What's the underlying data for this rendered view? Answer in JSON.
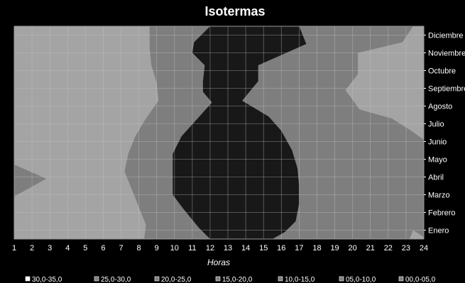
{
  "chart_data": {
    "type": "contour",
    "title": "Isotermas",
    "xlabel": "Horas",
    "ylabel": "",
    "x_ticks": [
      "1",
      "2",
      "3",
      "4",
      "5",
      "6",
      "7",
      "8",
      "9",
      "10",
      "11",
      "12",
      "13",
      "14",
      "15",
      "16",
      "17",
      "18",
      "19",
      "20",
      "21",
      "22",
      "23",
      "24"
    ],
    "y_ticks": [
      "Enero",
      "Febrero",
      "Marzo",
      "Abril",
      "Mayo",
      "Junio",
      "Julio",
      "Agosto",
      "Septiembre",
      "Octubre",
      "Noviembre",
      "Diciembre"
    ],
    "xlim": [
      1,
      24
    ],
    "grid": true,
    "legend_position": "bottom",
    "legend": [
      {
        "label": "30,0-35,0",
        "color": "#ffffff"
      },
      {
        "label": "25,0-30,0",
        "color": "#808080"
      },
      {
        "label": "20,0-25,0",
        "color": "#808080"
      },
      {
        "label": "15,0-20,0",
        "color": "#808080"
      },
      {
        "label": "10,0-15,0",
        "color": "#808080"
      },
      {
        "label": "05,0-10,0",
        "color": "#808080"
      },
      {
        "label": "00,0-05,0",
        "color": "#808080"
      }
    ],
    "regions": [
      {
        "name": "05,0-10,0",
        "color": "#a4a4a4",
        "polygon": [
          [
            1,
            0.5
          ],
          [
            24,
            0.5
          ],
          [
            24,
            12.5
          ],
          [
            1,
            12.5
          ]
        ]
      },
      {
        "name": "10,0-15,0",
        "color": "#7e7e7e",
        "polygon": [
          [
            8.6,
            12.5
          ],
          [
            23.4,
            12.5
          ],
          [
            22.8,
            11.6
          ],
          [
            20.3,
            11.0
          ],
          [
            20.3,
            9.8
          ],
          [
            19.6,
            8.9
          ],
          [
            20.4,
            7.8
          ],
          [
            22.2,
            7.3
          ],
          [
            23.3,
            6.6
          ],
          [
            24,
            6.1
          ],
          [
            24,
            0.6
          ],
          [
            23.4,
            1.0
          ],
          [
            23.2,
            0.5
          ],
          [
            8.3,
            0.5
          ],
          [
            8.4,
            1.3
          ],
          [
            8.0,
            2.3
          ],
          [
            7.6,
            3.3
          ],
          [
            7.2,
            4.3
          ],
          [
            7.4,
            5.3
          ],
          [
            7.8,
            6.3
          ],
          [
            8.4,
            7.3
          ],
          [
            9.1,
            8.3
          ],
          [
            9.0,
            9.3
          ],
          [
            8.7,
            10.3
          ],
          [
            8.6,
            11.3
          ]
        ]
      },
      {
        "name": "10,0-15,0",
        "color": "#7e7e7e",
        "polygon": [
          [
            1,
            4.7
          ],
          [
            2.8,
            3.9
          ],
          [
            1,
            2.9
          ]
        ]
      },
      {
        "name": "15,0-20,0",
        "color": "#181818",
        "polygon": [
          [
            12.0,
            12.5
          ],
          [
            17.0,
            12.5
          ],
          [
            17.4,
            11.5
          ],
          [
            14.7,
            10.3
          ],
          [
            14.7,
            9.4
          ],
          [
            13.8,
            8.3
          ],
          [
            15.3,
            7.4
          ],
          [
            16.0,
            6.6
          ],
          [
            16.6,
            5.5
          ],
          [
            16.9,
            4.5
          ],
          [
            17.0,
            3.5
          ],
          [
            17.0,
            2.5
          ],
          [
            16.8,
            1.5
          ],
          [
            16.2,
            0.9
          ],
          [
            15.5,
            0.5
          ],
          [
            12.0,
            0.5
          ],
          [
            11.4,
            1.1
          ],
          [
            10.5,
            2.2
          ],
          [
            9.9,
            3.0
          ],
          [
            9.9,
            4.3
          ],
          [
            9.9,
            5.3
          ],
          [
            10.4,
            6.3
          ],
          [
            11.3,
            7.3
          ],
          [
            12.1,
            8.2
          ],
          [
            11.6,
            8.8
          ],
          [
            11.6,
            9.4
          ],
          [
            11.7,
            10.3
          ],
          [
            11.0,
            11.0
          ],
          [
            11.1,
            11.6
          ]
        ]
      }
    ]
  }
}
